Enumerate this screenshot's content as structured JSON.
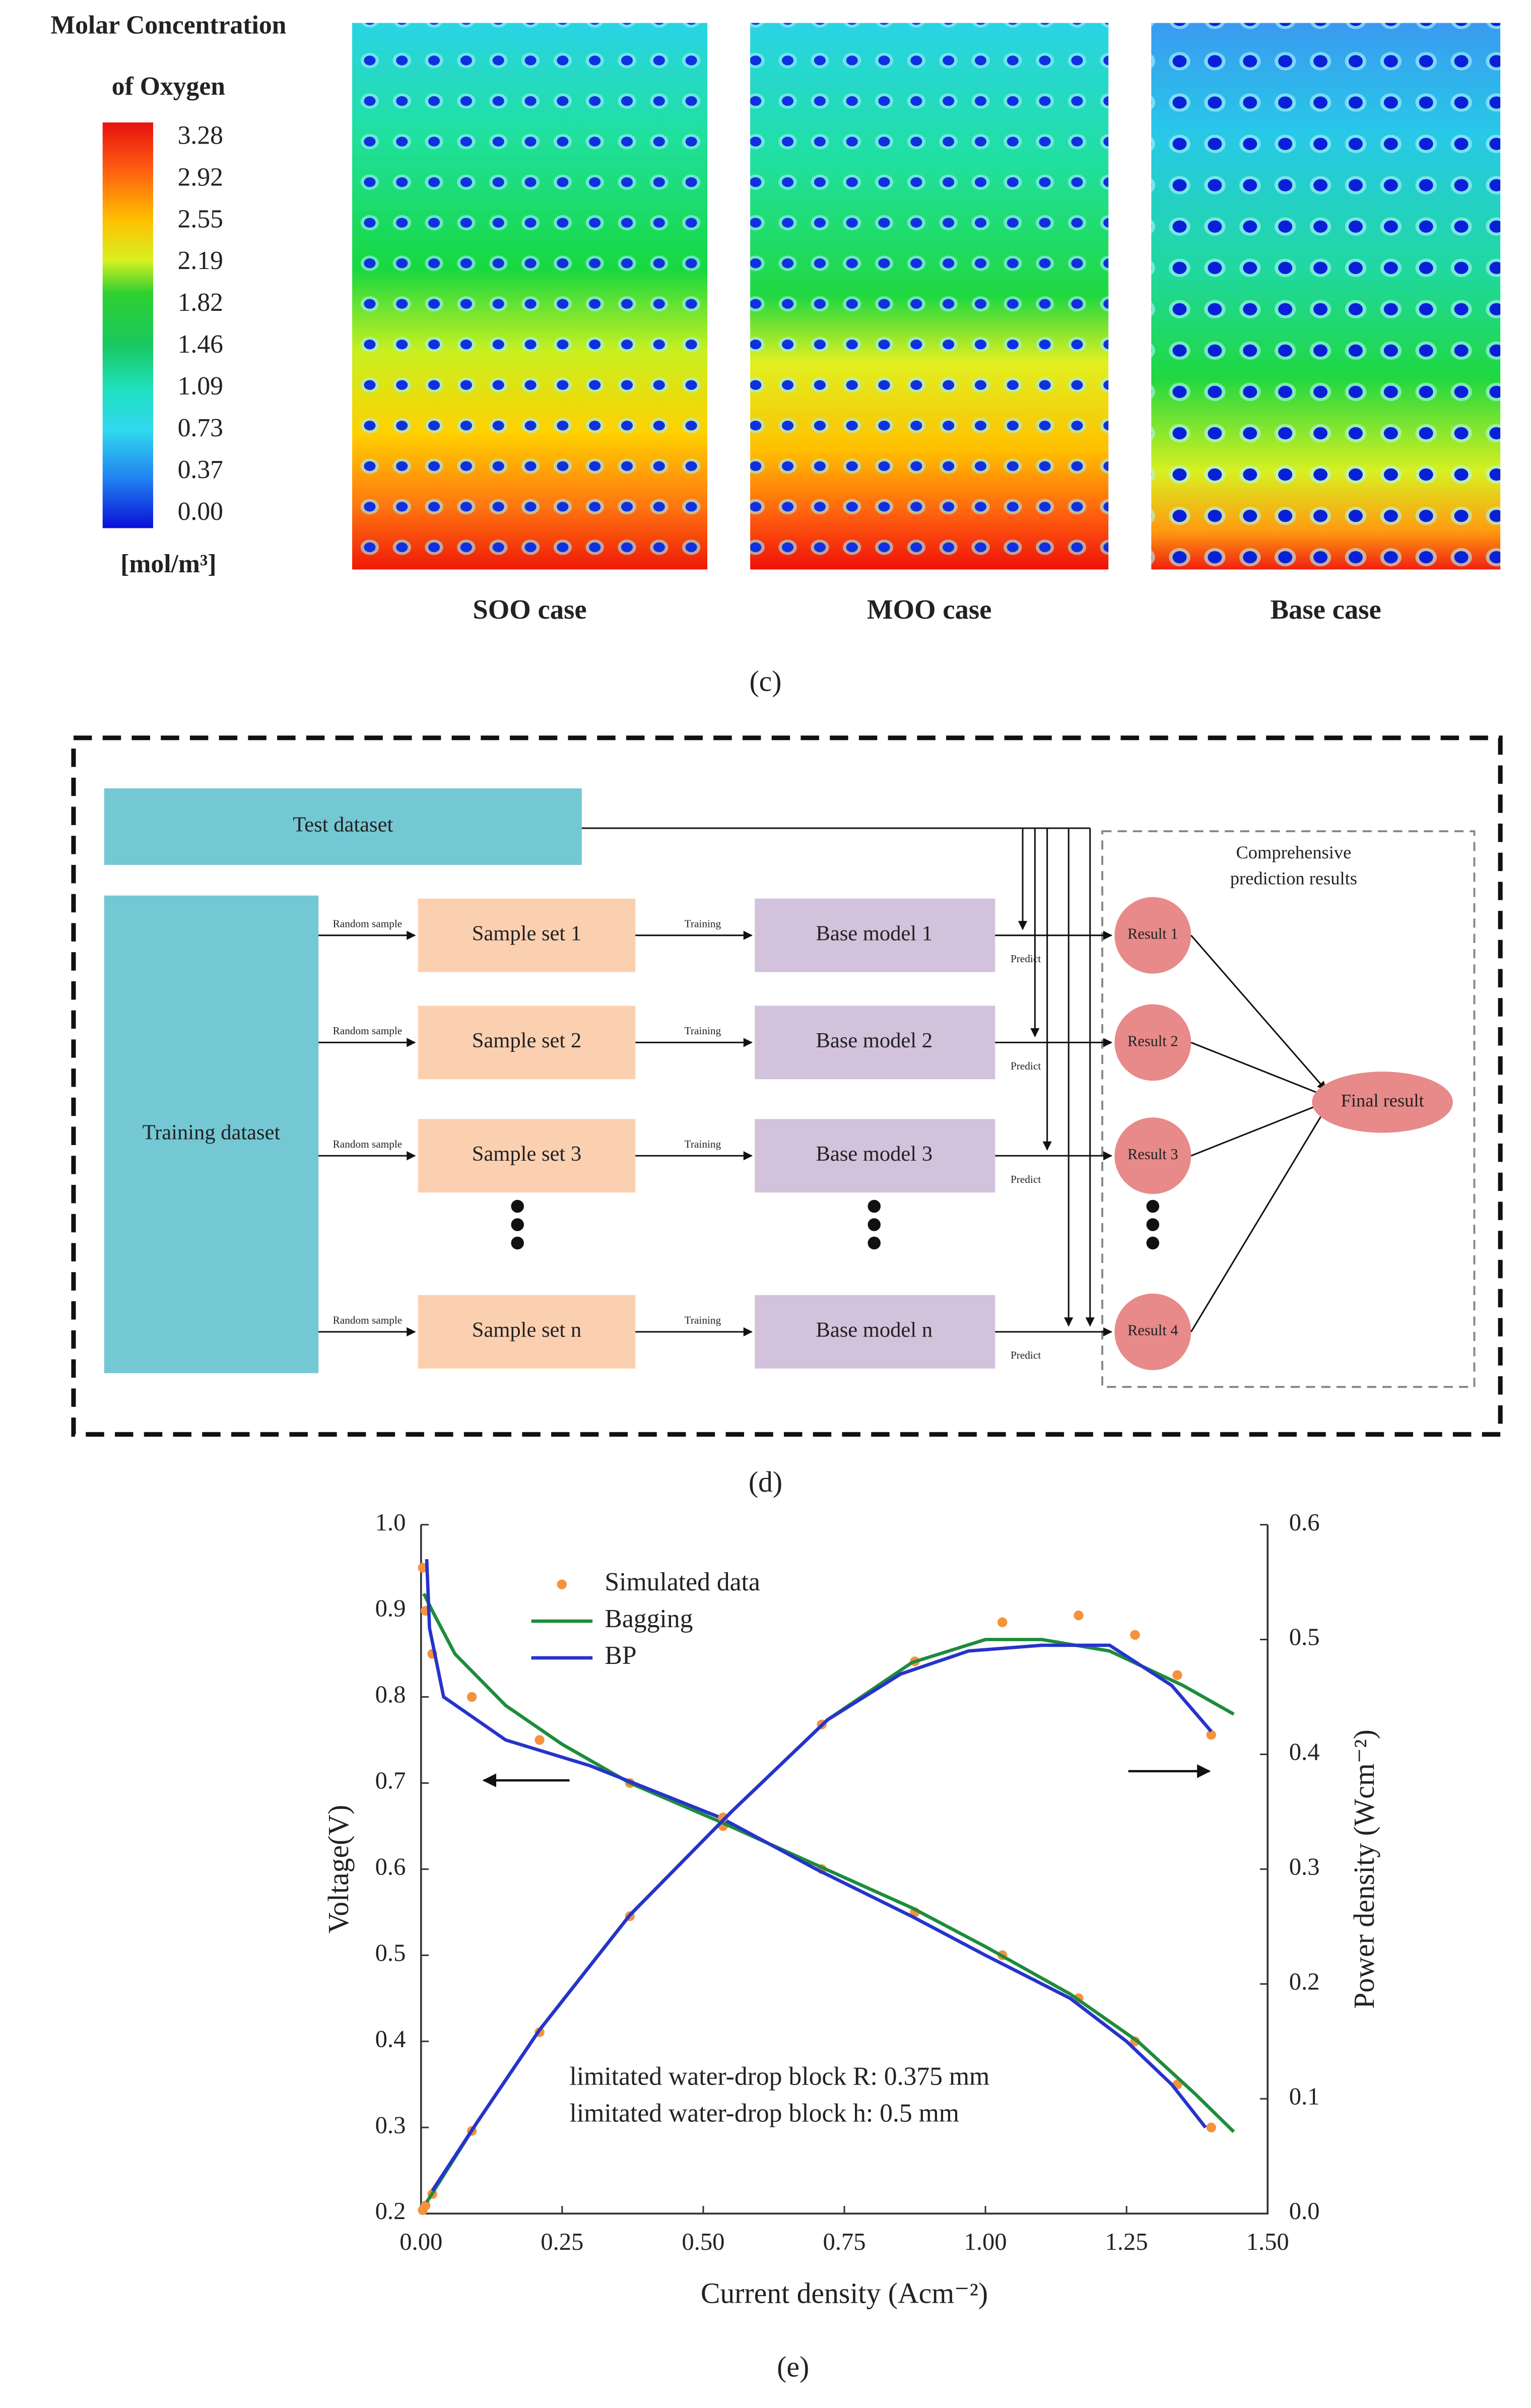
{
  "contour_panel": {
    "colorbar_title": [
      "Molar Concentration",
      "of Oxygen"
    ],
    "colorbar_labels": [
      "3.28",
      "2.92",
      "2.55",
      "2.19",
      "1.82",
      "1.46",
      "1.09",
      "0.73",
      "0.37",
      "0.00"
    ],
    "unit": "[mol/m³]",
    "cases": [
      "SOO case",
      "MOO case",
      "Base case"
    ],
    "caption": "(c)"
  },
  "diagram": {
    "test_dataset": "Test dataset",
    "training_dataset": "Training dataset",
    "sample_sets": [
      "Sample set 1",
      "Sample set 2",
      "Sample set 3",
      "Sample set n"
    ],
    "base_models": [
      "Base model  1",
      "Base model  2",
      "Base model  3",
      "Base model  n"
    ],
    "results": [
      "Result 1",
      "Result 2",
      "Result 3",
      "Result 4"
    ],
    "final_result": "Final result",
    "group_label": [
      "Comprehensive",
      "prediction results"
    ],
    "random_sample_labels": [
      "Random sample",
      "Random sample",
      "Random sample",
      "Random sample"
    ],
    "training_labels": [
      "Training",
      "Training",
      "Training",
      "Training"
    ],
    "predict_labels": [
      "Predict",
      "Predict",
      "Predict",
      "Predict"
    ],
    "caption": "(d)"
  },
  "chart_data": {
    "type": "line",
    "x_label": "Current density (Acm⁻²)",
    "y_label": "Voltage(V)",
    "y2_label": "Power density (Wcm⁻²)",
    "caption": "(e)",
    "annotations": [
      "limitated water-drop block R: 0.375 mm",
      "limitated water-drop block h: 0.5 mm"
    ],
    "xlim": [
      0,
      1.5
    ],
    "xticks": [
      {
        "value": 0,
        "label": "0.00"
      },
      {
        "value": 0.25,
        "label": "0.25"
      },
      {
        "value": 0.5,
        "label": "0.50"
      },
      {
        "value": 0.75,
        "label": "0.75"
      },
      {
        "value": 1,
        "label": "1.00"
      },
      {
        "value": 1.25,
        "label": "1.25"
      },
      {
        "value": 1.5,
        "label": "1.50"
      }
    ],
    "ylim": [
      0.2,
      1.0
    ],
    "yticks": [
      0.2,
      0.3,
      0.4,
      0.5,
      0.6,
      0.7,
      0.8,
      0.9,
      {
        "value": 1,
        "label": "1.0"
      }
    ],
    "y2lim": [
      0,
      0.6
    ],
    "y2ticks": [
      {
        "value": 0,
        "label": "0.0"
      },
      0.1,
      0.2,
      0.3,
      0.4,
      0.5,
      0.6
    ],
    "series": [
      {
        "name": "Simulated data",
        "type": "scatter",
        "color": "#f5923e",
        "x": [
          0.003,
          0.008,
          0.02,
          0.09,
          0.21,
          0.37,
          0.535,
          0.71,
          0.875,
          1.03,
          1.165,
          1.265,
          1.34,
          1.4
        ],
        "values": [
          0.95,
          0.9,
          0.85,
          0.8,
          0.75,
          0.7,
          0.65,
          0.6,
          0.55,
          0.5,
          0.45,
          0.4,
          0.35,
          0.3
        ]
      },
      {
        "name": "Bagging",
        "type": "line",
        "color": "#1e8c3a",
        "x": [
          0.005,
          0.02,
          0.06,
          0.15,
          0.25,
          0.37,
          0.53,
          0.7,
          0.87,
          1.0,
          1.15,
          1.27,
          1.37,
          1.44
        ],
        "values": [
          0.92,
          0.9,
          0.85,
          0.79,
          0.745,
          0.7,
          0.655,
          0.605,
          0.555,
          0.51,
          0.455,
          0.4,
          0.34,
          0.295
        ]
      },
      {
        "name": "BP",
        "type": "line",
        "color": "#2633cc",
        "x": [
          0.01,
          0.015,
          0.04,
          0.15,
          0.3,
          0.53,
          0.7,
          0.87,
          1.0,
          1.15,
          1.25,
          1.33,
          1.39
        ],
        "values": [
          0.96,
          0.88,
          0.8,
          0.75,
          0.72,
          0.66,
          0.6,
          0.545,
          0.5,
          0.45,
          0.4,
          0.35,
          0.3
        ]
      },
      {
        "type": "scatter",
        "axis": "y2",
        "color": "#f5923e",
        "x": [
          0.003,
          0.008,
          0.02,
          0.09,
          0.21,
          0.37,
          0.535,
          0.71,
          0.875,
          1.03,
          1.165,
          1.265,
          1.34,
          1.4
        ],
        "values": [
          0.003,
          0.007,
          0.017,
          0.072,
          0.158,
          0.259,
          0.345,
          0.426,
          0.481,
          0.515,
          0.521,
          0.504,
          0.469,
          0.417
        ]
      },
      {
        "type": "line",
        "axis": "y2",
        "color": "#1e8c3a",
        "x": [
          0.01,
          0.1,
          0.21,
          0.37,
          0.55,
          0.72,
          0.87,
          1.0,
          1.1,
          1.22,
          1.35,
          1.44
        ],
        "values": [
          0.01,
          0.08,
          0.16,
          0.26,
          0.35,
          0.43,
          0.48,
          0.5,
          0.5,
          0.49,
          0.46,
          0.435
        ]
      },
      {
        "type": "line",
        "axis": "y2",
        "color": "#2633cc",
        "x": [
          0.02,
          0.1,
          0.21,
          0.37,
          0.55,
          0.72,
          0.85,
          0.97,
          1.1,
          1.22,
          1.33,
          1.4
        ],
        "values": [
          0.02,
          0.08,
          0.16,
          0.26,
          0.35,
          0.43,
          0.47,
          0.49,
          0.495,
          0.495,
          0.46,
          0.42
        ]
      }
    ]
  }
}
